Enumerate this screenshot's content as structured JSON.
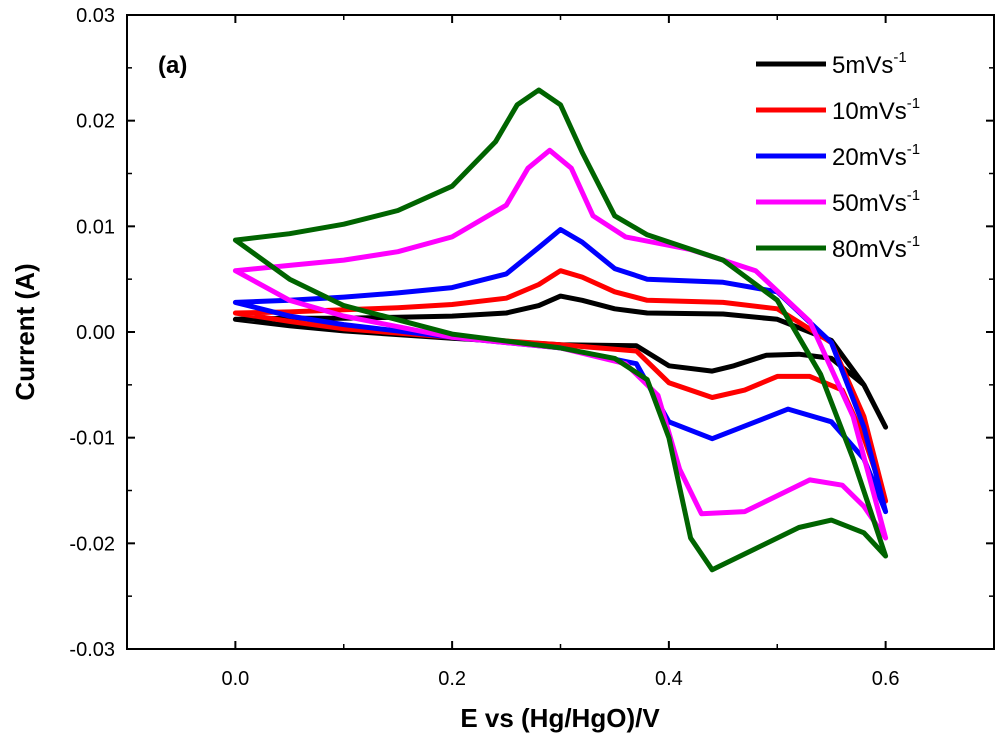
{
  "chart_data": {
    "type": "line",
    "panel_label": "(a)",
    "xlabel": "E vs (Hg/HgO)/V",
    "ylabel": "Current (A)",
    "xlim": [
      -0.1,
      0.7
    ],
    "ylim": [
      -0.03,
      0.03
    ],
    "x_ticks": [
      0.0,
      0.2,
      0.4,
      0.6
    ],
    "x_tick_labels": [
      "0.0",
      "0.2",
      "0.4",
      "0.6"
    ],
    "y_ticks": [
      -0.03,
      -0.02,
      -0.01,
      0.0,
      0.01,
      0.02,
      0.03
    ],
    "y_tick_labels": [
      "-0.03",
      "-0.02",
      "-0.01",
      "0.00",
      "0.01",
      "0.02",
      "0.03"
    ],
    "grid": false,
    "legend_position": "top-right",
    "series": [
      {
        "name": "5mVs-1",
        "legend_base": "5mVs",
        "legend_sup": "-1",
        "color": "#000000",
        "points": [
          [
            0.0,
            0.0012
          ],
          [
            0.05,
            0.0013
          ],
          [
            0.1,
            0.0013
          ],
          [
            0.15,
            0.0014
          ],
          [
            0.2,
            0.0015
          ],
          [
            0.25,
            0.0018
          ],
          [
            0.28,
            0.0025
          ],
          [
            0.3,
            0.0034
          ],
          [
            0.32,
            0.003
          ],
          [
            0.35,
            0.0022
          ],
          [
            0.38,
            0.0018
          ],
          [
            0.45,
            0.0017
          ],
          [
            0.5,
            0.0012
          ],
          [
            0.55,
            -0.0008
          ],
          [
            0.58,
            -0.005
          ],
          [
            0.6,
            -0.009
          ],
          [
            0.58,
            -0.005
          ],
          [
            0.55,
            -0.0025
          ],
          [
            0.52,
            -0.0021
          ],
          [
            0.49,
            -0.0022
          ],
          [
            0.46,
            -0.0032
          ],
          [
            0.44,
            -0.0037
          ],
          [
            0.4,
            -0.0032
          ],
          [
            0.37,
            -0.0013
          ],
          [
            0.3,
            -0.0012
          ],
          [
            0.2,
            -0.0006
          ],
          [
            0.1,
            0.0001
          ],
          [
            0.05,
            0.0006
          ],
          [
            0.0,
            0.0012
          ]
        ]
      },
      {
        "name": "10mVs-1",
        "legend_base": "10mVs",
        "legend_sup": "-1",
        "color": "#ff0000",
        "points": [
          [
            0.0,
            0.0018
          ],
          [
            0.05,
            0.0019
          ],
          [
            0.1,
            0.0021
          ],
          [
            0.15,
            0.0023
          ],
          [
            0.2,
            0.0026
          ],
          [
            0.25,
            0.0032
          ],
          [
            0.28,
            0.0045
          ],
          [
            0.3,
            0.0058
          ],
          [
            0.32,
            0.0052
          ],
          [
            0.35,
            0.0038
          ],
          [
            0.38,
            0.003
          ],
          [
            0.45,
            0.0028
          ],
          [
            0.5,
            0.0022
          ],
          [
            0.55,
            -0.001
          ],
          [
            0.58,
            -0.008
          ],
          [
            0.6,
            -0.016
          ],
          [
            0.58,
            -0.01
          ],
          [
            0.56,
            -0.0055
          ],
          [
            0.53,
            -0.0042
          ],
          [
            0.5,
            -0.0042
          ],
          [
            0.47,
            -0.0055
          ],
          [
            0.44,
            -0.0062
          ],
          [
            0.4,
            -0.0048
          ],
          [
            0.37,
            -0.0018
          ],
          [
            0.3,
            -0.0012
          ],
          [
            0.2,
            -0.0005
          ],
          [
            0.1,
            0.0003
          ],
          [
            0.05,
            0.001
          ],
          [
            0.0,
            0.0018
          ]
        ]
      },
      {
        "name": "20mVs-1",
        "legend_base": "20mVs",
        "legend_sup": "-1",
        "color": "#0000ff",
        "points": [
          [
            0.0,
            0.0028
          ],
          [
            0.05,
            0.003
          ],
          [
            0.1,
            0.0033
          ],
          [
            0.15,
            0.0037
          ],
          [
            0.2,
            0.0042
          ],
          [
            0.25,
            0.0055
          ],
          [
            0.28,
            0.008
          ],
          [
            0.3,
            0.0097
          ],
          [
            0.32,
            0.0085
          ],
          [
            0.35,
            0.006
          ],
          [
            0.38,
            0.005
          ],
          [
            0.45,
            0.0047
          ],
          [
            0.5,
            0.0038
          ],
          [
            0.55,
            -0.001
          ],
          [
            0.58,
            -0.009
          ],
          [
            0.6,
            -0.017
          ],
          [
            0.58,
            -0.012
          ],
          [
            0.55,
            -0.0085
          ],
          [
            0.51,
            -0.0073
          ],
          [
            0.48,
            -0.0085
          ],
          [
            0.44,
            -0.0101
          ],
          [
            0.4,
            -0.0085
          ],
          [
            0.37,
            -0.003
          ],
          [
            0.3,
            -0.0015
          ],
          [
            0.2,
            -0.0005
          ],
          [
            0.1,
            0.0007
          ],
          [
            0.05,
            0.0015
          ],
          [
            0.0,
            0.0028
          ]
        ]
      },
      {
        "name": "50mVs-1",
        "legend_base": "50mVs",
        "legend_sup": "-1",
        "color": "#ff00ff",
        "points": [
          [
            0.0,
            0.0058
          ],
          [
            0.05,
            0.0063
          ],
          [
            0.1,
            0.0068
          ],
          [
            0.15,
            0.0076
          ],
          [
            0.2,
            0.009
          ],
          [
            0.25,
            0.012
          ],
          [
            0.27,
            0.0155
          ],
          [
            0.29,
            0.0172
          ],
          [
            0.31,
            0.0155
          ],
          [
            0.33,
            0.011
          ],
          [
            0.36,
            0.009
          ],
          [
            0.42,
            0.0078
          ],
          [
            0.48,
            0.0058
          ],
          [
            0.53,
            0.001
          ],
          [
            0.57,
            -0.008
          ],
          [
            0.6,
            -0.0195
          ],
          [
            0.58,
            -0.0165
          ],
          [
            0.56,
            -0.0145
          ],
          [
            0.53,
            -0.014
          ],
          [
            0.5,
            -0.0155
          ],
          [
            0.47,
            -0.017
          ],
          [
            0.43,
            -0.0172
          ],
          [
            0.41,
            -0.013
          ],
          [
            0.39,
            -0.006
          ],
          [
            0.36,
            -0.003
          ],
          [
            0.3,
            -0.0015
          ],
          [
            0.2,
            -0.0005
          ],
          [
            0.1,
            0.0015
          ],
          [
            0.05,
            0.003
          ],
          [
            0.0,
            0.0058
          ]
        ]
      },
      {
        "name": "80mVs-1",
        "legend_base": "80mVs",
        "legend_sup": "-1",
        "color": "#006400",
        "points": [
          [
            0.0,
            0.0087
          ],
          [
            0.05,
            0.0093
          ],
          [
            0.1,
            0.0102
          ],
          [
            0.15,
            0.0115
          ],
          [
            0.2,
            0.0138
          ],
          [
            0.24,
            0.018
          ],
          [
            0.26,
            0.0215
          ],
          [
            0.28,
            0.0229
          ],
          [
            0.3,
            0.0215
          ],
          [
            0.32,
            0.017
          ],
          [
            0.35,
            0.011
          ],
          [
            0.38,
            0.0092
          ],
          [
            0.45,
            0.0068
          ],
          [
            0.5,
            0.003
          ],
          [
            0.54,
            -0.004
          ],
          [
            0.57,
            -0.012
          ],
          [
            0.6,
            -0.0212
          ],
          [
            0.58,
            -0.019
          ],
          [
            0.55,
            -0.0178
          ],
          [
            0.52,
            -0.0185
          ],
          [
            0.48,
            -0.0205
          ],
          [
            0.44,
            -0.0225
          ],
          [
            0.42,
            -0.0195
          ],
          [
            0.4,
            -0.01
          ],
          [
            0.38,
            -0.0045
          ],
          [
            0.35,
            -0.0025
          ],
          [
            0.3,
            -0.0015
          ],
          [
            0.2,
            -0.0002
          ],
          [
            0.1,
            0.0025
          ],
          [
            0.05,
            0.005
          ],
          [
            0.0,
            0.0087
          ]
        ]
      }
    ]
  }
}
